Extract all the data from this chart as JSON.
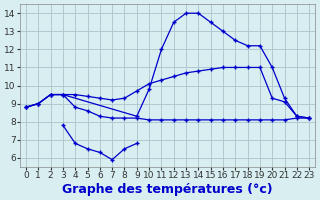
{
  "xlabel": "Graphe des températures (°c)",
  "background_color": "#d8eef0",
  "grid_color": "#b0c8d0",
  "line_color": "#0000cc",
  "x_ticks": [
    0,
    1,
    2,
    3,
    4,
    5,
    6,
    7,
    8,
    9,
    10,
    11,
    12,
    13,
    14,
    15,
    16,
    17,
    18,
    19,
    20,
    21,
    22,
    23
  ],
  "ylim": [
    5.5,
    14.5
  ],
  "xlim": [
    -0.5,
    23.5
  ],
  "y_ticks": [
    6,
    7,
    8,
    9,
    10,
    11,
    12,
    13,
    14
  ],
  "xlabel_fontsize": 9,
  "line1_x": [
    0,
    1,
    2,
    3,
    4,
    5,
    6,
    7,
    8,
    9,
    10,
    11,
    12,
    13,
    14,
    15,
    16,
    17,
    18,
    19,
    20,
    21,
    22,
    23
  ],
  "line1_y": [
    8.8,
    9.0,
    9.5,
    9.5,
    8.8,
    8.6,
    8.3,
    8.2,
    8.2,
    8.2,
    8.1,
    8.1,
    8.1,
    8.1,
    8.1,
    8.1,
    8.1,
    8.1,
    8.1,
    8.1,
    8.1,
    8.1,
    8.2,
    8.2
  ],
  "line2_x": [
    0,
    1,
    2,
    3,
    4,
    5,
    6,
    7,
    8,
    9,
    10,
    11,
    12,
    13,
    14,
    15,
    16,
    17,
    18,
    19,
    20,
    21,
    22,
    23
  ],
  "line2_y": [
    8.8,
    9.0,
    9.5,
    9.5,
    9.5,
    9.4,
    9.3,
    9.2,
    9.3,
    9.7,
    10.1,
    10.3,
    10.5,
    10.7,
    10.8,
    10.9,
    11.0,
    11.0,
    11.0,
    11.0,
    9.3,
    9.1,
    8.3,
    8.2
  ],
  "line3_x": [
    0,
    1,
    2,
    3,
    9,
    10,
    11,
    12,
    13,
    14,
    15,
    16,
    17,
    18,
    19,
    20,
    21,
    22,
    23
  ],
  "line3_y": [
    8.8,
    9.0,
    9.5,
    9.5,
    8.3,
    9.8,
    12.0,
    13.5,
    14.0,
    14.0,
    13.5,
    13.0,
    12.5,
    12.2,
    12.2,
    11.0,
    9.3,
    8.3,
    8.2
  ],
  "line4_x": [
    3,
    4,
    5,
    6,
    7,
    8,
    9
  ],
  "line4_y": [
    7.8,
    6.8,
    6.5,
    6.3,
    5.9,
    6.5,
    6.8
  ]
}
